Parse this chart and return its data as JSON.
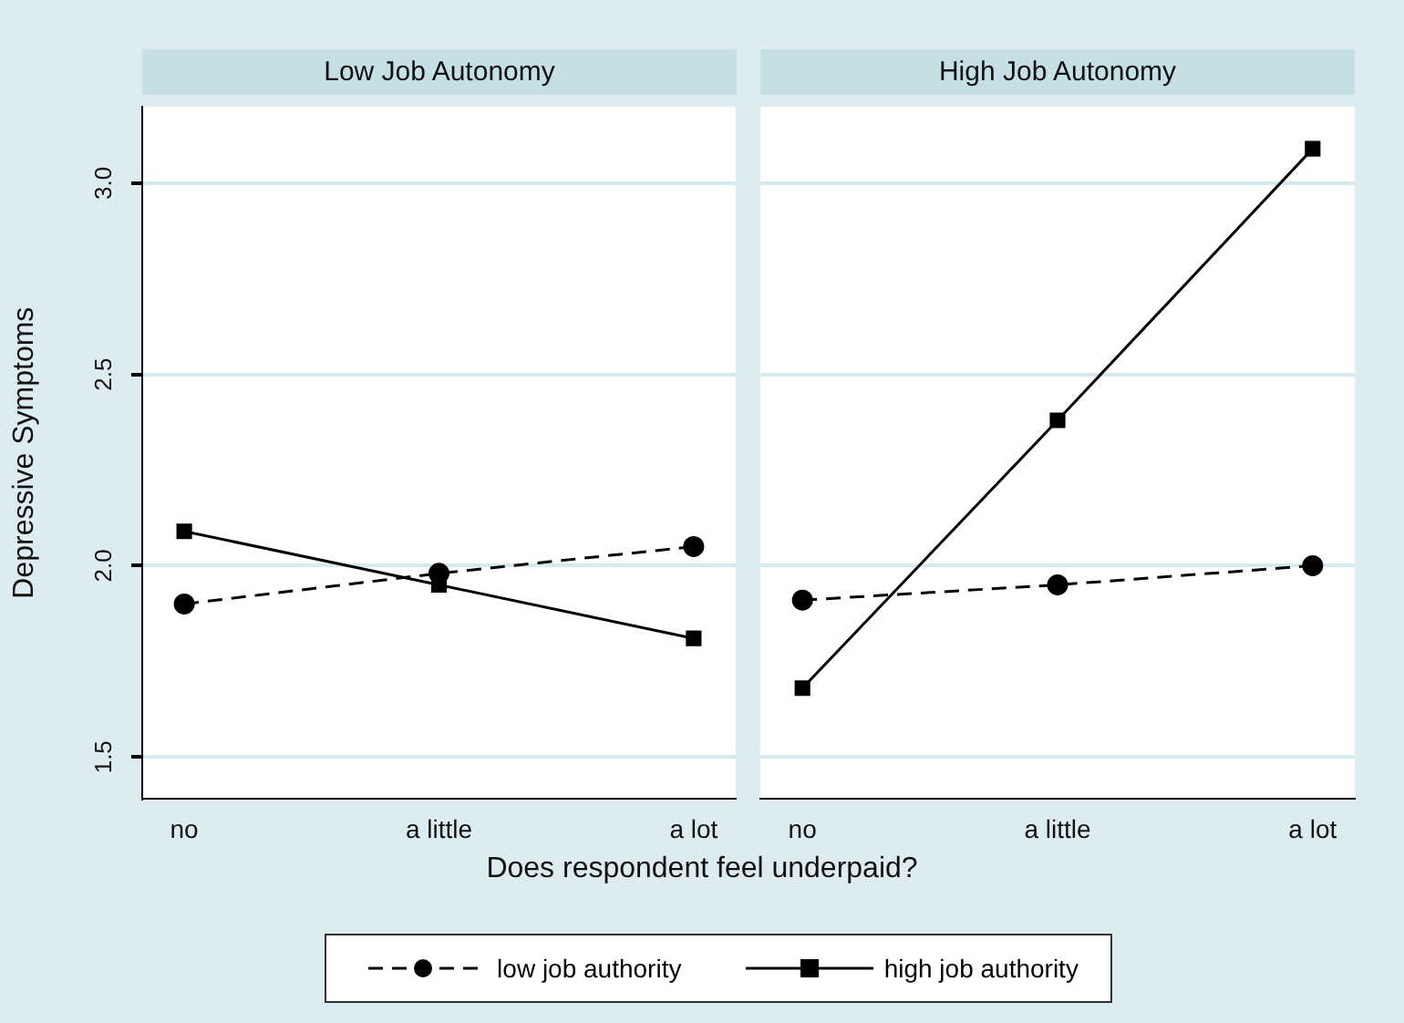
{
  "chart_data": [
    {
      "type": "line",
      "title": "Low Job Autonomy",
      "xlabel": "Does respondent feel underpaid?",
      "ylabel": "Depressive Symptoms",
      "categories": [
        "no",
        "a little",
        "a lot"
      ],
      "ylim": [
        1.39,
        3.2
      ],
      "yticks": [
        {
          "value": 1.5,
          "label": "1.5"
        },
        {
          "value": 2,
          "label": "2.0"
        },
        {
          "value": 2.5,
          "label": "2.5"
        },
        {
          "value": 3,
          "label": "3.0"
        }
      ],
      "grid": "y",
      "legend": "bottom",
      "series": [
        {
          "name": "low job authority",
          "color": "#000000",
          "marker": "circle",
          "line_style": "dashed",
          "values": [
            1.9,
            1.98,
            2.05
          ]
        },
        {
          "name": "high job authority",
          "color": "#000000",
          "marker": "square",
          "line_style": "solid",
          "values": [
            2.09,
            1.95,
            1.81
          ]
        }
      ]
    },
    {
      "type": "line",
      "title": "High Job Autonomy",
      "categories": [
        "no",
        "a little",
        "a lot"
      ],
      "ylim": [
        1.39,
        3.2
      ],
      "yticks": [
        1.5,
        2,
        2.5,
        3
      ],
      "grid": "y",
      "tick_labels": "x",
      "series": [
        {
          "color": "#000000",
          "marker": "circle",
          "line_style": "dashed",
          "values": [
            1.91,
            1.95,
            2.0
          ]
        },
        {
          "color": "#000000",
          "marker": "square",
          "line_style": "solid",
          "values": [
            1.68,
            2.38,
            3.09
          ]
        }
      ]
    }
  ]
}
